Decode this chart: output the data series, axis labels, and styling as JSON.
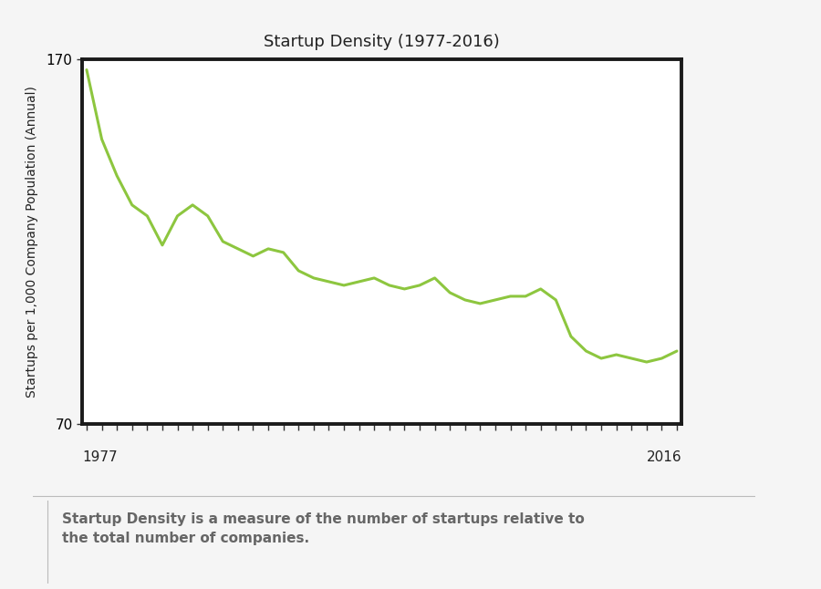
{
  "title": "Startup Density (1977-2016)",
  "ylabel": "Startups per 1,000 Company Population (Annual)",
  "ylim": [
    70,
    170
  ],
  "line_color": "#8DC63F",
  "line_width": 2.2,
  "bg_color": "#F5F5F5",
  "plot_bg_color": "#FFFFFF",
  "border_color": "#1a1a1a",
  "caption": "Startup Density is a measure of the number of startups relative to\nthe total number of companies.",
  "caption_color": "#666666",
  "years": [
    1977,
    1978,
    1979,
    1980,
    1981,
    1982,
    1983,
    1984,
    1985,
    1986,
    1987,
    1988,
    1989,
    1990,
    1991,
    1992,
    1993,
    1994,
    1995,
    1996,
    1997,
    1998,
    1999,
    2000,
    2001,
    2002,
    2003,
    2004,
    2005,
    2006,
    2007,
    2008,
    2009,
    2010,
    2011,
    2012,
    2013,
    2014,
    2015,
    2016
  ],
  "values": [
    167,
    148,
    138,
    130,
    127,
    119,
    127,
    130,
    127,
    120,
    118,
    116,
    118,
    117,
    112,
    110,
    109,
    108,
    109,
    110,
    108,
    107,
    108,
    110,
    106,
    104,
    103,
    104,
    105,
    105,
    107,
    104,
    94,
    90,
    88,
    89,
    88,
    87,
    88,
    90
  ]
}
